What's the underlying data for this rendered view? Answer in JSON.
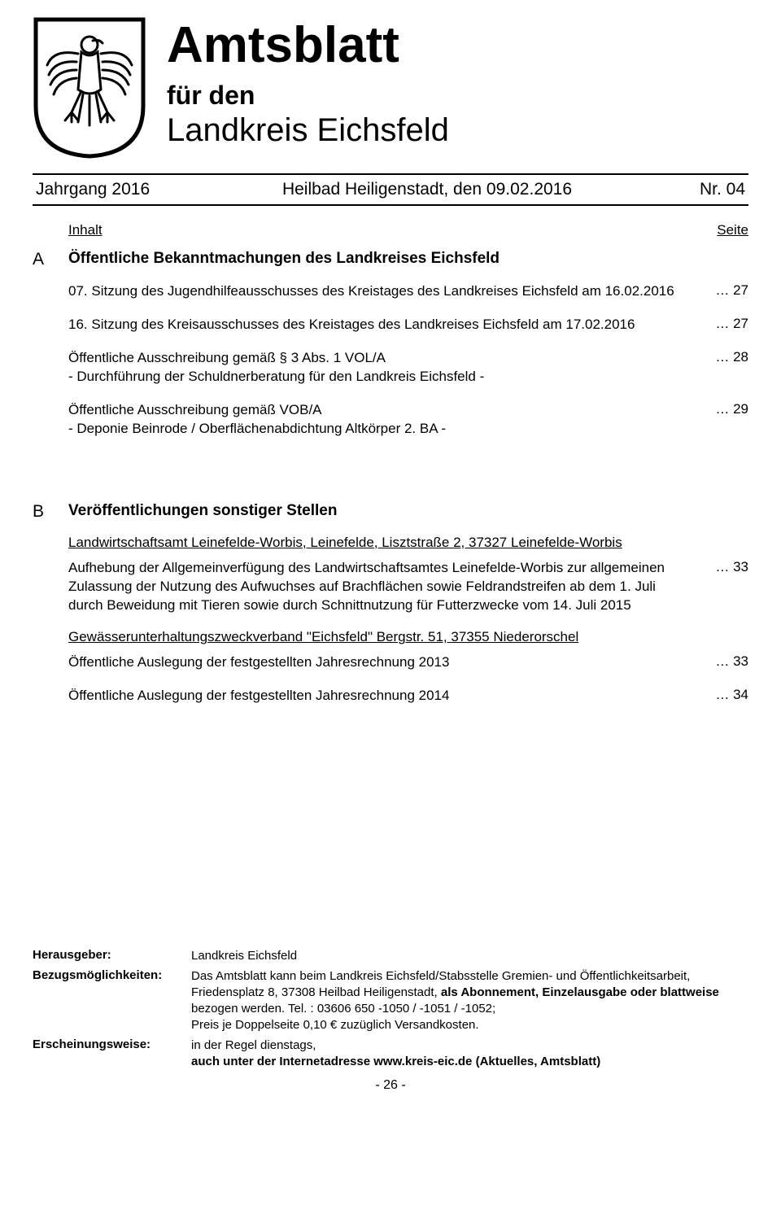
{
  "header": {
    "title": "Amtsblatt",
    "subtitle1": "für den",
    "subtitle2": "Landkreis Eichsfeld"
  },
  "meta": {
    "jahrgang": "Jahrgang 2016",
    "place_date": "Heilbad Heiligenstadt, den 09.02.2016",
    "issue": "Nr. 04"
  },
  "toc_header": {
    "left": "Inhalt",
    "right": "Seite"
  },
  "sectionA": {
    "letter": "A",
    "title": "Öffentliche Bekanntmachungen des Landkreises Eichsfeld",
    "items": [
      {
        "text": "07. Sitzung des Jugendhilfeausschusses des Kreistages des Landkreises Eichsfeld am 16.02.2016",
        "page": "… 27"
      },
      {
        "text": "16. Sitzung des Kreisausschusses des Kreistages des Landkreises Eichsfeld am 17.02.2016",
        "page": "… 27"
      },
      {
        "text": "Öffentliche Ausschreibung gemäß § 3 Abs. 1 VOL/A\n- Durchführung der Schuldnerberatung für den Landkreis Eichsfeld -",
        "page": "… 28"
      },
      {
        "text": "Öffentliche Ausschreibung gemäß VOB/A\n- Deponie Beinrode / Oberflächenabdichtung Altkörper 2. BA -",
        "page": "… 29"
      }
    ]
  },
  "sectionB": {
    "letter": "B",
    "title": "Veröffentlichungen sonstiger Stellen",
    "groups": [
      {
        "heading": "Landwirtschaftsamt Leinefelde-Worbis, Leinefelde, Lisztstraße 2, 37327 Leinefelde-Worbis",
        "items": [
          {
            "text": "Aufhebung der Allgemeinverfügung des Landwirtschaftsamtes Leinefelde-Worbis zur allgemeinen Zulassung der Nutzung des Aufwuchses auf Brachflächen sowie Feldrandstreifen ab dem 1. Juli durch Beweidung mit Tieren sowie durch Schnittnutzung für Futterzwecke vom 14. Juli 2015",
            "page": "… 33"
          }
        ]
      },
      {
        "heading": "Gewässerunterhaltungszweckverband \"Eichsfeld\" Bergstr. 51, 37355 Niederorschel",
        "items": [
          {
            "text": "Öffentliche Auslegung der festgestellten Jahresrechnung 2013",
            "page": "… 33"
          },
          {
            "text": "Öffentliche Auslegung der festgestellten Jahresrechnung 2014",
            "page": "… 34"
          }
        ]
      }
    ]
  },
  "footer": {
    "rows": [
      {
        "label": "Herausgeber:",
        "value": "Landkreis Eichsfeld"
      },
      {
        "label": "Bezugsmöglichkeiten:",
        "value": "Das Amtsblatt kann beim Landkreis Eichsfeld/Stabsstelle Gremien- und Öffentlichkeitsarbeit, Friedensplatz 8, 37308 Heilbad Heiligenstadt, <b>als Abonnement, Einzelausgabe oder blattweise</b> bezogen werden. Tel. : 03606 650 -1050 / -1051 / -1052;\nPreis je Doppelseite 0,10 €  zuzüglich Versandkosten."
      },
      {
        "label": "Erscheinungsweise:",
        "value": "in der Regel dienstags,\n<b>auch unter der Internetadresse www.kreis-eic.de (Aktuelles, Amtsblatt)</b>"
      }
    ]
  },
  "page_number": "- 26 -",
  "coat_colors": {
    "stroke": "#000000",
    "fill": "#ffffff"
  }
}
